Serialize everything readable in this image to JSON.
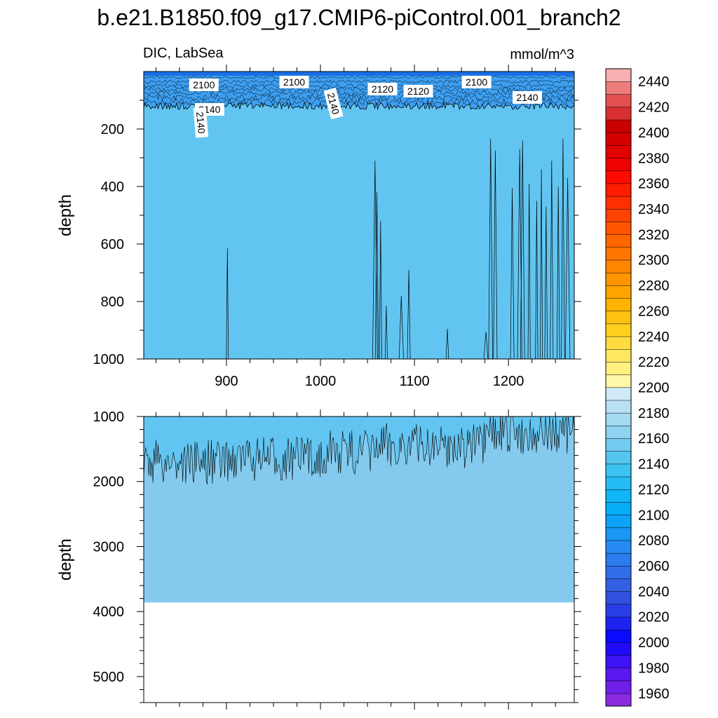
{
  "chart_data": {
    "type": "heatmap",
    "title": "b.e21.B1850.f09_g17.CMIP6-piControl.001_branch2",
    "left_label": "DIC, LabSea",
    "right_label": "mmol/m^3",
    "x_ticks": [
      900,
      1000,
      1100,
      1200
    ],
    "xlim": [
      812,
      1270
    ],
    "upper_panel": {
      "ylabel": "depth",
      "ylim": [
        0,
        1000
      ],
      "y_ticks": [
        200,
        400,
        600,
        800,
        1000
      ],
      "contour_labels": [
        "2100",
        "2100",
        "2120",
        "2120",
        "2100",
        "2140",
        "2140",
        "2140",
        "2140"
      ],
      "dominant_level": 2140
    },
    "lower_panel": {
      "ylabel": "depth",
      "ylim": [
        1000,
        5400
      ],
      "y_ticks": [
        1000,
        2000,
        3000,
        4000,
        5000
      ],
      "ocean_floor_depth": 3860,
      "upper_level": 2140,
      "lower_level": 2160
    },
    "colorbar": {
      "min": 1950,
      "max": 2450,
      "step": 10,
      "labels": [
        2440,
        2420,
        2400,
        2380,
        2360,
        2340,
        2320,
        2300,
        2280,
        2260,
        2240,
        2220,
        2200,
        2180,
        2160,
        2140,
        2120,
        2100,
        2080,
        2060,
        2040,
        2020,
        2000,
        1980,
        1960
      ],
      "colors": [
        "#8a2be2",
        "#6f1fe8",
        "#5818ee",
        "#3d12f5",
        "#200cfa",
        "#0a0aff",
        "#1e24f0",
        "#2a3ee6",
        "#3050e0",
        "#3360e2",
        "#2f6ee8",
        "#2b7ced",
        "#268af2",
        "#1a96f5",
        "#0da2f8",
        "#08adf9",
        "#10b6f7",
        "#25bdf3",
        "#3cc3f1",
        "#55c5f0",
        "#72cbf0",
        "#8ed2f0",
        "#a4daf2",
        "#b8e2f4",
        "#cfeaf6",
        "#fff8a8",
        "#fff080",
        "#ffe760",
        "#ffdd40",
        "#ffd020",
        "#ffc210",
        "#ffb400",
        "#ffa500",
        "#ff9600",
        "#ff8600",
        "#ff7600",
        "#ff6600",
        "#ff5500",
        "#ff4300",
        "#ff3000",
        "#ff1c00",
        "#ff0a00",
        "#f00000",
        "#e20000",
        "#d40000",
        "#c80000",
        "#d83030",
        "#e45050",
        "#ee7c7c",
        "#f8b0b0"
      ]
    },
    "colors": {
      "upper_fill": "#62c5f1",
      "lower_fill": "#84caee",
      "surface_fill": "#1f7ff0"
    }
  }
}
